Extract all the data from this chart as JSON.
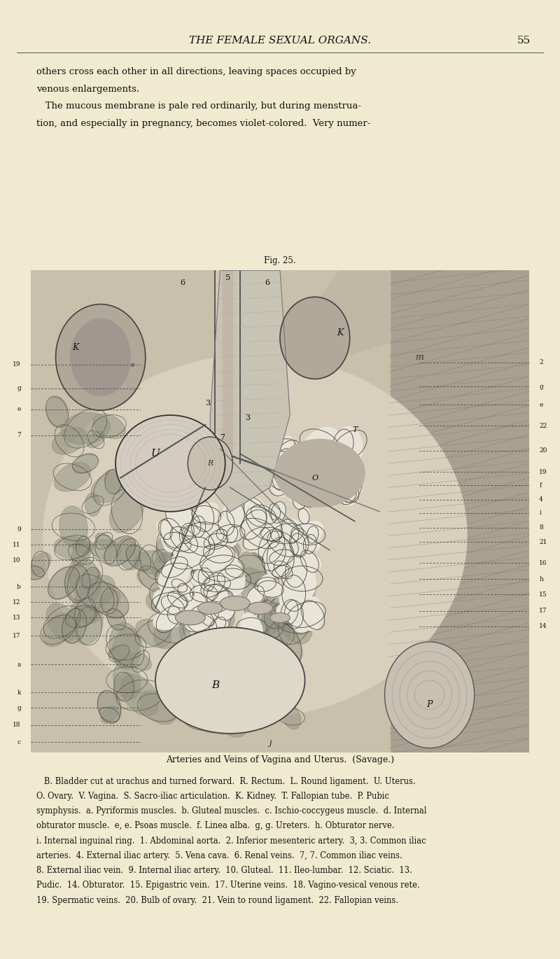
{
  "bg_color": "#f0ebd0",
  "header_text": "THE FEMALE SEXUAL ORGANS.",
  "header_page_num": "55",
  "top_text_lines": [
    "others cross each other in all directions, leaving spaces occupied by",
    "venous enlargements.",
    "   The mucous membrane is pale red ordinarily, but during menstrua-",
    "tion, and especially in pregnancy, becomes violet-colored.  Very numer-"
  ],
  "fig_caption": "Fig. 25.",
  "caption_title": "Arteries and Veins of Vagina and Uterus.  (Savage.)",
  "legend_lines": [
    "   B. Bladder cut at urachus and turned forward.  R. Rectum.  L. Round ligament.  U. Uterus.",
    "O. Ovary.  V. Vagina.  S. Sacro-iliac articulation.  K. Kidney.  T. Fallopian tube.  P. Pubic",
    "symphysis.  a. Pyriformis muscles.  b. Gluteal muscles.  c. Ischio-coccygeus muscle.  d. Internal",
    "obturator muscle.  e, e. Psoas muscle.  f. Linea alba.  g, g. Ureters.  h. Obturator nerve.",
    "i. Internal inguinal ring.  1. Abdominal aorta.  2. Inferior mesenteric artery.  3, 3. Common iliac",
    "arteries.  4. External iliac artery.  5. Vena cava.  6. Renal veins.  7, 7. Common iliac veins.",
    "8. External iliac vein.  9. Internal iliac artery.  10. Gluteal.  11. Ileo-lumbar.  12. Sciatic.  13.",
    "Pudic.  14. Obturator.  15. Epigastric vein.  17. Uterine veins.  18. Vagino-vesical venous rete.",
    "19. Spermatic veins.  20. Bulb of ovary.  21. Vein to round ligament.  22. Fallopian veins."
  ],
  "text_color": "#111111",
  "left_labels": [
    [
      "19",
      0.62
    ],
    [
      "g",
      0.595
    ],
    [
      "e",
      0.573
    ],
    [
      "7",
      0.546
    ],
    [
      "9",
      0.448
    ],
    [
      "11",
      0.432
    ],
    [
      "10",
      0.416
    ],
    [
      "b",
      0.388
    ],
    [
      "12",
      0.372
    ],
    [
      "13",
      0.356
    ],
    [
      "17",
      0.337
    ],
    [
      "a",
      0.307
    ],
    [
      "k",
      0.278
    ],
    [
      "g",
      0.262
    ],
    [
      "18",
      0.244
    ],
    [
      "c",
      0.226
    ]
  ],
  "right_labels": [
    [
      "2",
      0.622
    ],
    [
      "g",
      0.597
    ],
    [
      "e",
      0.578
    ],
    [
      "22",
      0.556
    ],
    [
      "20",
      0.53
    ],
    [
      "19",
      0.508
    ],
    [
      "f",
      0.494
    ],
    [
      "4",
      0.479
    ],
    [
      "i",
      0.465
    ],
    [
      "8",
      0.45
    ],
    [
      "21",
      0.435
    ],
    [
      "16",
      0.413
    ],
    [
      "h",
      0.396
    ],
    [
      "15",
      0.38
    ],
    [
      "17",
      0.363
    ],
    [
      "14",
      0.347
    ]
  ]
}
